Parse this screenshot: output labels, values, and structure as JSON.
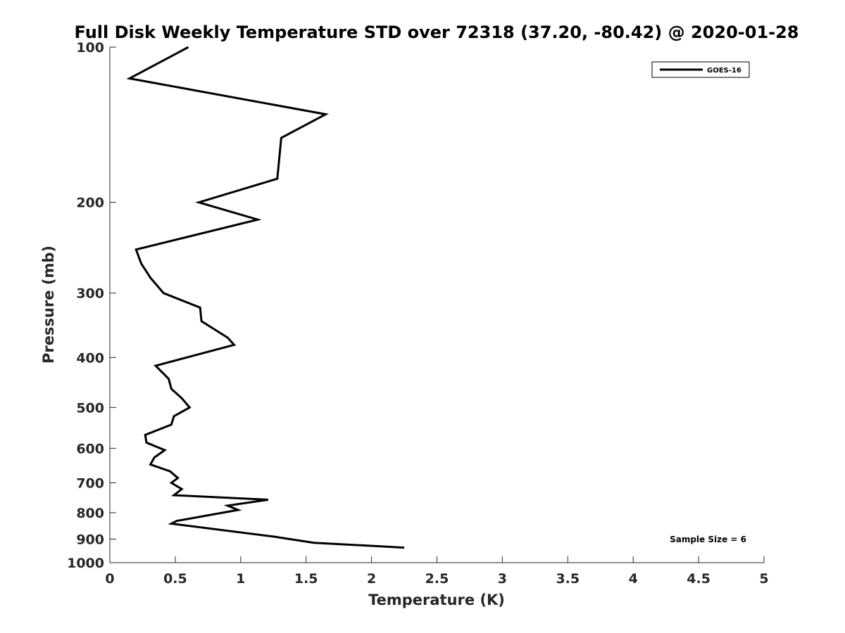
{
  "chart_data": {
    "type": "line",
    "title": "Full Disk Weekly Temperature STD over 72318 (37.20, -80.42) @ 2020-01-28",
    "xlabel": "Temperature (K)",
    "ylabel": "Pressure (mb)",
    "xlim": [
      0,
      5
    ],
    "ylim": [
      100,
      1000
    ],
    "y_scale": "log",
    "y_reversed": true,
    "xticks": [
      "0",
      "0.5",
      "1",
      "1.5",
      "2",
      "2.5",
      "3",
      "3.5",
      "4",
      "4.5",
      "5"
    ],
    "yticks": [
      "100",
      "200",
      "300",
      "400",
      "500",
      "600",
      "700",
      "800",
      "900",
      "1000"
    ],
    "grid": false,
    "legend_position": "top-right",
    "annotation": "Sample Size = 6",
    "series": [
      {
        "name": "GOES-16",
        "color": "#000000",
        "points": [
          [
            0.6,
            100
          ],
          [
            0.15,
            115
          ],
          [
            1.65,
            135
          ],
          [
            1.31,
            150
          ],
          [
            1.28,
            180
          ],
          [
            0.68,
            200
          ],
          [
            1.13,
            216
          ],
          [
            0.2,
            247
          ],
          [
            0.24,
            263
          ],
          [
            0.31,
            280
          ],
          [
            0.41,
            300
          ],
          [
            0.69,
            320
          ],
          [
            0.7,
            340
          ],
          [
            0.9,
            366
          ],
          [
            0.95,
            378
          ],
          [
            0.35,
            415
          ],
          [
            0.45,
            440
          ],
          [
            0.47,
            460
          ],
          [
            0.55,
            480
          ],
          [
            0.61,
            500
          ],
          [
            0.49,
            520
          ],
          [
            0.47,
            540
          ],
          [
            0.27,
            565
          ],
          [
            0.28,
            585
          ],
          [
            0.42,
            605
          ],
          [
            0.34,
            625
          ],
          [
            0.31,
            645
          ],
          [
            0.46,
            665
          ],
          [
            0.52,
            685
          ],
          [
            0.47,
            700
          ],
          [
            0.55,
            720
          ],
          [
            0.49,
            740
          ],
          [
            1.21,
            755
          ],
          [
            0.9,
            775
          ],
          [
            0.98,
            790
          ],
          [
            0.51,
            830
          ],
          [
            0.47,
            840
          ],
          [
            1.25,
            890
          ],
          [
            1.56,
            915
          ],
          [
            2.25,
            935
          ]
        ]
      }
    ]
  }
}
